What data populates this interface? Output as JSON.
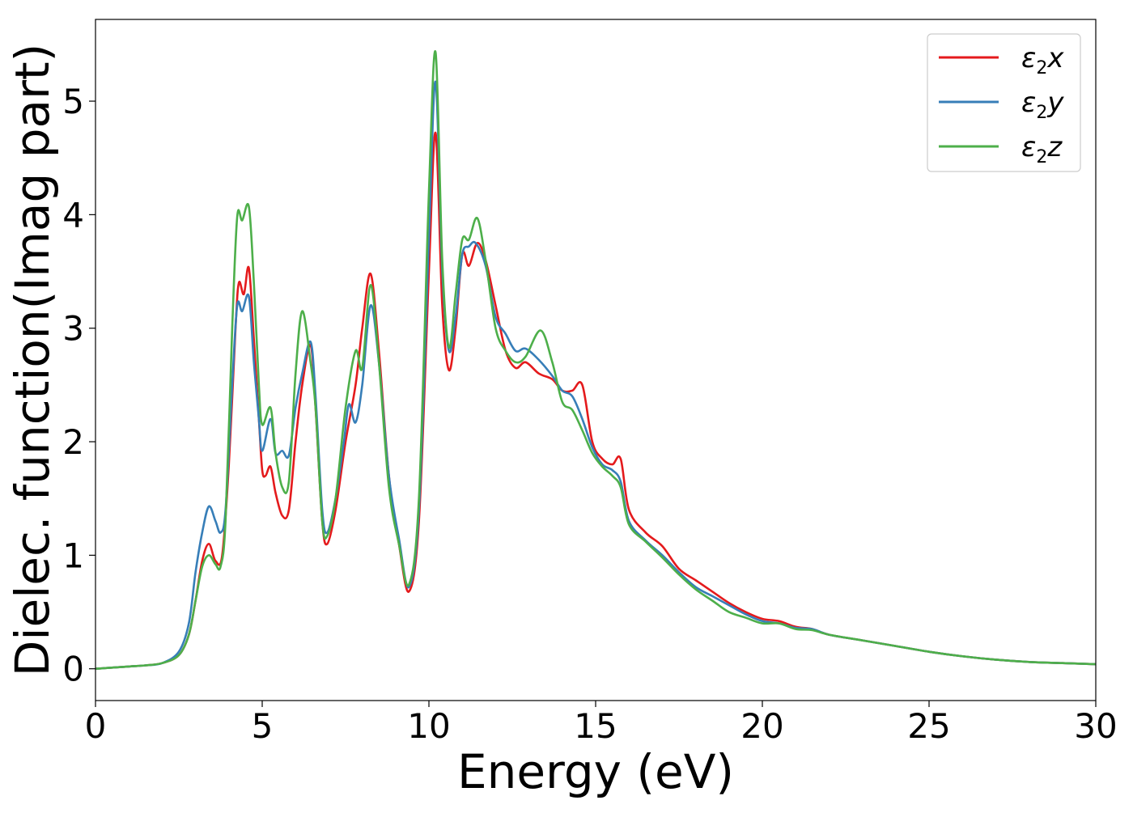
{
  "chart_data": {
    "type": "line",
    "xlabel": "Energy (eV)",
    "ylabel": "Dielec. function(Imag part)",
    "xlim": [
      0,
      30
    ],
    "ylim": [
      -0.28,
      5.72
    ],
    "xticks": [
      0,
      5,
      10,
      15,
      20,
      25,
      30
    ],
    "yticks": [
      0,
      1,
      2,
      3,
      4,
      5
    ],
    "grid": false,
    "legend_position": "top-right",
    "series": [
      {
        "name": "ε2x",
        "label_main": "ε",
        "label_sub": "2",
        "label_tail": "x",
        "color": "#e41a1c",
        "points": [
          [
            0,
            0
          ],
          [
            1,
            0.02
          ],
          [
            1.5,
            0.03
          ],
          [
            2,
            0.05
          ],
          [
            2.5,
            0.12
          ],
          [
            2.8,
            0.3
          ],
          [
            3.0,
            0.6
          ],
          [
            3.2,
            0.95
          ],
          [
            3.4,
            1.1
          ],
          [
            3.6,
            0.95
          ],
          [
            3.8,
            1.0
          ],
          [
            4.0,
            1.8
          ],
          [
            4.2,
            3.0
          ],
          [
            4.3,
            3.4
          ],
          [
            4.45,
            3.3
          ],
          [
            4.6,
            3.53
          ],
          [
            4.75,
            2.9
          ],
          [
            4.9,
            2.2
          ],
          [
            5.0,
            1.75
          ],
          [
            5.1,
            1.7
          ],
          [
            5.25,
            1.78
          ],
          [
            5.4,
            1.55
          ],
          [
            5.6,
            1.35
          ],
          [
            5.8,
            1.4
          ],
          [
            6.0,
            2.0
          ],
          [
            6.2,
            2.5
          ],
          [
            6.45,
            2.85
          ],
          [
            6.6,
            2.3
          ],
          [
            6.8,
            1.3
          ],
          [
            6.95,
            1.1
          ],
          [
            7.2,
            1.4
          ],
          [
            7.5,
            2.0
          ],
          [
            7.8,
            2.5
          ],
          [
            8.0,
            3.0
          ],
          [
            8.25,
            3.48
          ],
          [
            8.5,
            2.8
          ],
          [
            8.8,
            1.7
          ],
          [
            9.1,
            1.1
          ],
          [
            9.4,
            0.68
          ],
          [
            9.7,
            1.3
          ],
          [
            10.0,
            3.5
          ],
          [
            10.2,
            4.72
          ],
          [
            10.4,
            3.2
          ],
          [
            10.6,
            2.63
          ],
          [
            10.8,
            3.0
          ],
          [
            11.0,
            3.65
          ],
          [
            11.2,
            3.55
          ],
          [
            11.45,
            3.75
          ],
          [
            11.7,
            3.6
          ],
          [
            12.0,
            3.2
          ],
          [
            12.3,
            2.8
          ],
          [
            12.6,
            2.65
          ],
          [
            12.9,
            2.7
          ],
          [
            13.3,
            2.6
          ],
          [
            13.7,
            2.55
          ],
          [
            14.0,
            2.45
          ],
          [
            14.3,
            2.45
          ],
          [
            14.6,
            2.5
          ],
          [
            14.9,
            2.0
          ],
          [
            15.2,
            1.85
          ],
          [
            15.5,
            1.8
          ],
          [
            15.75,
            1.85
          ],
          [
            16.0,
            1.4
          ],
          [
            16.5,
            1.2
          ],
          [
            17.0,
            1.08
          ],
          [
            17.5,
            0.88
          ],
          [
            18.0,
            0.78
          ],
          [
            18.5,
            0.68
          ],
          [
            19.0,
            0.58
          ],
          [
            19.5,
            0.5
          ],
          [
            20.0,
            0.44
          ],
          [
            20.5,
            0.42
          ],
          [
            21.0,
            0.37
          ],
          [
            21.5,
            0.35
          ],
          [
            22.0,
            0.3
          ],
          [
            23.0,
            0.25
          ],
          [
            24.0,
            0.2
          ],
          [
            25.0,
            0.15
          ],
          [
            26.0,
            0.11
          ],
          [
            27.0,
            0.08
          ],
          [
            28.0,
            0.06
          ],
          [
            29.0,
            0.05
          ],
          [
            30.0,
            0.04
          ]
        ]
      },
      {
        "name": "ε2y",
        "label_main": "ε",
        "label_sub": "2",
        "label_tail": "y",
        "color": "#377eb8",
        "points": [
          [
            0,
            0
          ],
          [
            1,
            0.02
          ],
          [
            1.5,
            0.03
          ],
          [
            2,
            0.05
          ],
          [
            2.5,
            0.15
          ],
          [
            2.8,
            0.4
          ],
          [
            3.0,
            0.85
          ],
          [
            3.2,
            1.2
          ],
          [
            3.4,
            1.43
          ],
          [
            3.6,
            1.3
          ],
          [
            3.75,
            1.2
          ],
          [
            3.9,
            1.4
          ],
          [
            4.1,
            2.5
          ],
          [
            4.25,
            3.2
          ],
          [
            4.4,
            3.15
          ],
          [
            4.6,
            3.28
          ],
          [
            4.75,
            2.7
          ],
          [
            4.9,
            2.2
          ],
          [
            5.0,
            1.92
          ],
          [
            5.25,
            2.2
          ],
          [
            5.4,
            1.9
          ],
          [
            5.6,
            1.92
          ],
          [
            5.8,
            1.88
          ],
          [
            6.0,
            2.3
          ],
          [
            6.2,
            2.6
          ],
          [
            6.45,
            2.88
          ],
          [
            6.6,
            2.4
          ],
          [
            6.8,
            1.4
          ],
          [
            6.95,
            1.2
          ],
          [
            7.2,
            1.5
          ],
          [
            7.45,
            2.0
          ],
          [
            7.6,
            2.33
          ],
          [
            7.8,
            2.17
          ],
          [
            8.0,
            2.5
          ],
          [
            8.25,
            3.2
          ],
          [
            8.5,
            2.7
          ],
          [
            8.8,
            1.7
          ],
          [
            9.1,
            1.15
          ],
          [
            9.4,
            0.72
          ],
          [
            9.7,
            1.4
          ],
          [
            10.0,
            3.8
          ],
          [
            10.2,
            5.17
          ],
          [
            10.4,
            3.5
          ],
          [
            10.6,
            2.8
          ],
          [
            10.8,
            3.1
          ],
          [
            11.0,
            3.65
          ],
          [
            11.2,
            3.72
          ],
          [
            11.4,
            3.75
          ],
          [
            11.7,
            3.55
          ],
          [
            12.0,
            3.1
          ],
          [
            12.3,
            2.95
          ],
          [
            12.6,
            2.8
          ],
          [
            12.9,
            2.82
          ],
          [
            13.3,
            2.72
          ],
          [
            13.7,
            2.58
          ],
          [
            14.0,
            2.45
          ],
          [
            14.3,
            2.4
          ],
          [
            14.6,
            2.2
          ],
          [
            14.9,
            1.95
          ],
          [
            15.2,
            1.8
          ],
          [
            15.5,
            1.75
          ],
          [
            15.75,
            1.65
          ],
          [
            16.0,
            1.3
          ],
          [
            16.5,
            1.13
          ],
          [
            17.0,
            1.0
          ],
          [
            17.5,
            0.85
          ],
          [
            18.0,
            0.72
          ],
          [
            18.5,
            0.64
          ],
          [
            19.0,
            0.56
          ],
          [
            19.5,
            0.48
          ],
          [
            20.0,
            0.42
          ],
          [
            20.5,
            0.4
          ],
          [
            21.0,
            0.36
          ],
          [
            21.5,
            0.35
          ],
          [
            22.0,
            0.3
          ],
          [
            23.0,
            0.25
          ],
          [
            24.0,
            0.2
          ],
          [
            25.0,
            0.15
          ],
          [
            26.0,
            0.11
          ],
          [
            27.0,
            0.08
          ],
          [
            28.0,
            0.06
          ],
          [
            29.0,
            0.05
          ],
          [
            30.0,
            0.04
          ]
        ]
      },
      {
        "name": "ε2z",
        "label_main": "ε",
        "label_sub": "2",
        "label_tail": "z",
        "color": "#4daf4a",
        "points": [
          [
            0,
            0
          ],
          [
            1,
            0.02
          ],
          [
            1.5,
            0.03
          ],
          [
            2,
            0.05
          ],
          [
            2.5,
            0.12
          ],
          [
            2.8,
            0.3
          ],
          [
            3.0,
            0.6
          ],
          [
            3.2,
            0.9
          ],
          [
            3.4,
            1.0
          ],
          [
            3.6,
            0.92
          ],
          [
            3.75,
            0.9
          ],
          [
            3.9,
            1.3
          ],
          [
            4.1,
            3.0
          ],
          [
            4.25,
            3.98
          ],
          [
            4.4,
            3.95
          ],
          [
            4.6,
            4.07
          ],
          [
            4.75,
            3.4
          ],
          [
            4.9,
            2.5
          ],
          [
            5.0,
            2.15
          ],
          [
            5.25,
            2.3
          ],
          [
            5.4,
            1.9
          ],
          [
            5.6,
            1.6
          ],
          [
            5.8,
            1.65
          ],
          [
            6.0,
            2.6
          ],
          [
            6.2,
            3.15
          ],
          [
            6.45,
            2.7
          ],
          [
            6.6,
            2.3
          ],
          [
            6.8,
            1.3
          ],
          [
            6.95,
            1.17
          ],
          [
            7.2,
            1.5
          ],
          [
            7.5,
            2.3
          ],
          [
            7.8,
            2.8
          ],
          [
            8.0,
            2.65
          ],
          [
            8.25,
            3.38
          ],
          [
            8.5,
            2.7
          ],
          [
            8.8,
            1.6
          ],
          [
            9.1,
            1.1
          ],
          [
            9.4,
            0.74
          ],
          [
            9.7,
            1.5
          ],
          [
            10.0,
            4.2
          ],
          [
            10.2,
            5.43
          ],
          [
            10.4,
            3.6
          ],
          [
            10.6,
            2.83
          ],
          [
            10.8,
            3.3
          ],
          [
            11.0,
            3.78
          ],
          [
            11.2,
            3.78
          ],
          [
            11.45,
            3.97
          ],
          [
            11.7,
            3.6
          ],
          [
            12.0,
            3.0
          ],
          [
            12.3,
            2.8
          ],
          [
            12.6,
            2.7
          ],
          [
            12.9,
            2.75
          ],
          [
            13.35,
            2.98
          ],
          [
            13.7,
            2.7
          ],
          [
            14.0,
            2.35
          ],
          [
            14.3,
            2.28
          ],
          [
            14.6,
            2.1
          ],
          [
            14.9,
            1.9
          ],
          [
            15.2,
            1.78
          ],
          [
            15.5,
            1.7
          ],
          [
            15.75,
            1.6
          ],
          [
            16.0,
            1.27
          ],
          [
            16.5,
            1.12
          ],
          [
            17.0,
            0.98
          ],
          [
            17.5,
            0.83
          ],
          [
            18.0,
            0.7
          ],
          [
            18.5,
            0.6
          ],
          [
            19.0,
            0.5
          ],
          [
            19.5,
            0.45
          ],
          [
            20.0,
            0.4
          ],
          [
            20.5,
            0.4
          ],
          [
            21.0,
            0.35
          ],
          [
            21.5,
            0.34
          ],
          [
            22.0,
            0.3
          ],
          [
            23.0,
            0.25
          ],
          [
            24.0,
            0.2
          ],
          [
            25.0,
            0.15
          ],
          [
            26.0,
            0.11
          ],
          [
            27.0,
            0.08
          ],
          [
            28.0,
            0.06
          ],
          [
            29.0,
            0.05
          ],
          [
            30.0,
            0.04
          ]
        ]
      }
    ]
  }
}
